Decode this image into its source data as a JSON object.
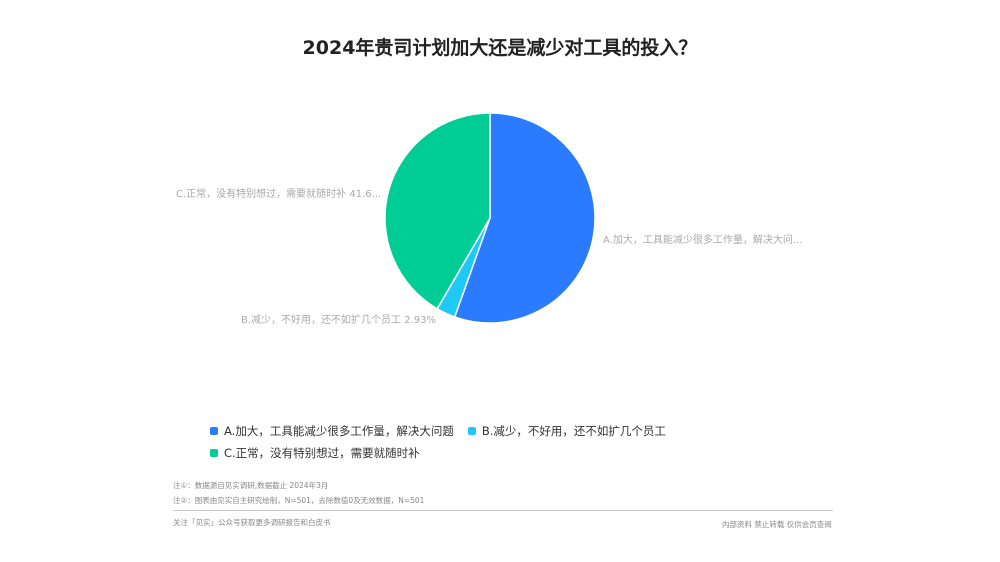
{
  "chart_data": {
    "type": "pie",
    "title": "2024年贵司计划加大还是减少对工具的投入？",
    "slices": [
      {
        "name": "A.加大，工具能减少很多工作量，解决大问题",
        "value": 55.45,
        "label": "A.加大，工具能减少很多工作量，解决大问...",
        "color": "#2a7bff"
      },
      {
        "name": "B.减少，不好用，还不如扩几个员工",
        "value": 2.93,
        "label": "B.减少，不好用，还不如扩几个员工 2.93%",
        "color": "#1ec9f7"
      },
      {
        "name": "C.正常，没有特别想过，需要就随时补",
        "value": 41.62,
        "label": "C.正常，没有特别想过，需要就随时补 41.6...",
        "color": "#00cd95"
      }
    ],
    "legend_position": "bottom-left"
  },
  "notes": {
    "note1": "注①：数据源自见实调研,数据截止 2024年3月",
    "note2": "注②：图表由见实自主研究绘制，N=501，去除数值0及无效数据，N=501",
    "footer_left": "关注「见实」公众号获取更多调研报告和白皮书",
    "footer_right": "内部资料 禁止转载 仅供会员查阅"
  }
}
